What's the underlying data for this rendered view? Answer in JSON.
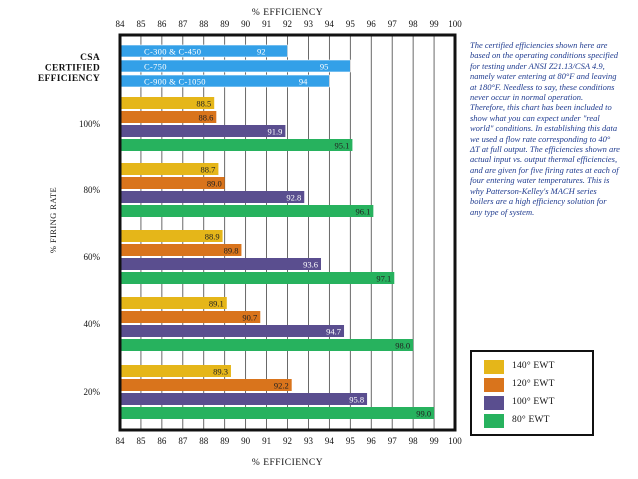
{
  "chart_data": {
    "type": "bar",
    "orientation": "horizontal",
    "title": "% EFFICIENCY",
    "xlabel": "% EFFICIENCY",
    "ylabel": "% FIRING RATE",
    "xlim": [
      84,
      100
    ],
    "x_ticks": [
      "84",
      "85",
      "86",
      "87",
      "88",
      "89",
      "90",
      "91",
      "92",
      "93",
      "94",
      "95",
      "96",
      "97",
      "98",
      "99",
      "100"
    ],
    "grid": true,
    "csa": {
      "label_lines": [
        "CSA",
        "CERTIFIED",
        "EFFICIENCY"
      ],
      "bars": [
        {
          "name": "C-300 & C-450",
          "value": 92
        },
        {
          "name": "C-750",
          "value": 95
        },
        {
          "name": "C-900 & C-1050",
          "value": 94
        }
      ],
      "color": "#33a0e8"
    },
    "categories": [
      "100%",
      "80%",
      "60%",
      "40%",
      "20%"
    ],
    "series": [
      {
        "name": "140° EWT",
        "color": "#e5b619",
        "values": [
          88.5,
          88.7,
          88.9,
          89.1,
          89.3
        ]
      },
      {
        "name": "120° EWT",
        "color": "#d9741c",
        "values": [
          88.6,
          89.0,
          89.8,
          90.7,
          92.2
        ]
      },
      {
        "name": "100° EWT",
        "color": "#5a4e8f",
        "values": [
          91.9,
          92.8,
          93.6,
          94.7,
          95.8
        ]
      },
      {
        "name": "80° EWT",
        "color": "#27b25e",
        "values": [
          95.1,
          96.1,
          97.1,
          98.0,
          99.0
        ]
      }
    ],
    "legend_position": "bottom-right"
  },
  "note": "The certified efficiencies shown here are based on the operating conditions specified for testing under ANSI Z21.13/CSA 4.9, namely water entering at 80°F and leaving at 180°F. Needless to say, these conditions never occur in normal operation. Therefore, this chart has been included to show what you can expect under \"real world\" conditions. In establishing this data we used a flow rate corresponding to 40° ΔT at full output. The efficiencies shown are actual input vs. output thermal efficiencies, and are given for five firing rates at each of four entering water temperatures. This is why Patterson-Kelley's MACH series boilers are a high efficiency solution for any type of system.",
  "legend": [
    {
      "label": "140° EWT",
      "color": "#e5b619"
    },
    {
      "label": "120° EWT",
      "color": "#d9741c"
    },
    {
      "label": "100° EWT",
      "color": "#5a4e8f"
    },
    {
      "label": "80° EWT",
      "color": "#27b25e"
    }
  ]
}
